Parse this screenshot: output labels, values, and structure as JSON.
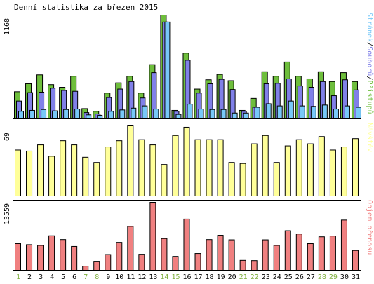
{
  "title": "Denní statistika za březen 2015",
  "days": [
    "1",
    "2",
    "3",
    "4",
    "5",
    "6",
    "7",
    "8",
    "9",
    "10",
    "11",
    "12",
    "13",
    "14",
    "15",
    "16",
    "17",
    "18",
    "19",
    "20",
    "21",
    "22",
    "23",
    "24",
    "25",
    "26",
    "27",
    "28",
    "29",
    "30",
    "31"
  ],
  "weekend_days": [
    "1",
    "7",
    "8",
    "14",
    "15",
    "21",
    "22",
    "28",
    "29"
  ],
  "colors": {
    "pristupu": "#6ebe3c",
    "souboru": "#8080e8",
    "stranek": "#78c8f8",
    "navstev": "#ffff99",
    "objem": "#f08080",
    "weekday_label": "#000000",
    "weekend_label": "#80b040",
    "frame": "#000000"
  },
  "chart_data": [
    {
      "type": "bar",
      "panel": "top",
      "ymax_label": "1168",
      "ylim": [
        0,
        1168
      ],
      "legend": [
        {
          "text": "Stránek",
          "key": "stranek"
        },
        {
          "text": "/",
          "key": "slash"
        },
        {
          "text": "Souborů",
          "key": "souboru"
        },
        {
          "text": "/",
          "key": "slash"
        },
        {
          "text": "Přístupů",
          "key": "pristupu"
        }
      ],
      "categories": [
        "1",
        "2",
        "3",
        "4",
        "5",
        "6",
        "7",
        "8",
        "9",
        "10",
        "11",
        "12",
        "13",
        "14",
        "15",
        "16",
        "17",
        "18",
        "19",
        "20",
        "21",
        "22",
        "23",
        "24",
        "25",
        "26",
        "27",
        "28",
        "29",
        "30",
        "31"
      ],
      "series": [
        {
          "name": "Přístupů",
          "key": "pristupu",
          "values": [
            305,
            395,
            495,
            385,
            355,
            480,
            115,
            85,
            290,
            405,
            480,
            290,
            610,
            1168,
            95,
            740,
            335,
            440,
            500,
            430,
            95,
            230,
            530,
            480,
            640,
            480,
            450,
            530,
            420,
            520,
            420
          ]
        },
        {
          "name": "Souborů",
          "key": "souboru",
          "values": [
            200,
            295,
            300,
            345,
            320,
            310,
            70,
            55,
            240,
            335,
            420,
            235,
            520,
            1090,
            85,
            660,
            290,
            395,
            445,
            330,
            85,
            130,
            395,
            400,
            450,
            370,
            355,
            420,
            260,
            440,
            325
          ]
        },
        {
          "name": "Stránek",
          "key": "stranek",
          "values": [
            85,
            95,
            105,
            90,
            105,
            110,
            45,
            40,
            85,
            100,
            120,
            145,
            110,
            1090,
            50,
            165,
            110,
            105,
            105,
            65,
            65,
            130,
            170,
            145,
            200,
            145,
            140,
            155,
            110,
            145,
            130
          ]
        }
      ]
    },
    {
      "type": "bar",
      "panel": "middle",
      "ymax_label": "69",
      "ylim": [
        0,
        69
      ],
      "legend": [
        {
          "text": "Návštěv",
          "key": "navstev"
        }
      ],
      "categories": [
        "1",
        "2",
        "3",
        "4",
        "5",
        "6",
        "7",
        "8",
        "9",
        "10",
        "11",
        "12",
        "13",
        "14",
        "15",
        "16",
        "17",
        "18",
        "19",
        "20",
        "21",
        "22",
        "23",
        "24",
        "25",
        "26",
        "27",
        "28",
        "29",
        "30",
        "31"
      ],
      "series": [
        {
          "name": "Návštěv",
          "key": "navstev",
          "values": [
            45,
            44,
            50,
            39,
            54,
            50,
            38,
            33,
            48,
            54,
            69,
            55,
            50,
            31,
            59,
            67,
            55,
            55,
            55,
            33,
            32,
            51,
            59,
            33,
            49,
            55,
            51,
            58,
            45,
            48,
            56
          ]
        }
      ]
    },
    {
      "type": "bar",
      "panel": "bottom",
      "ymax_label": "13559",
      "ylim": [
        0,
        13559
      ],
      "legend": [
        {
          "text": "Objem přenosu",
          "key": "objem"
        }
      ],
      "categories": [
        "1",
        "2",
        "3",
        "4",
        "5",
        "6",
        "7",
        "8",
        "9",
        "10",
        "11",
        "12",
        "13",
        "14",
        "15",
        "16",
        "17",
        "18",
        "19",
        "20",
        "21",
        "22",
        "23",
        "24",
        "25",
        "26",
        "27",
        "28",
        "29",
        "30",
        "31"
      ],
      "series": [
        {
          "name": "Objem přenosu",
          "key": "objem",
          "values": [
            5400,
            5200,
            5050,
            6950,
            6200,
            4850,
            960,
            1920,
            3250,
            5650,
            8800,
            3300,
            13559,
            6400,
            2880,
            10250,
            3450,
            6200,
            7050,
            6150,
            2100,
            2050,
            6150,
            5050,
            7950,
            7300,
            5400,
            6750,
            6900,
            10050,
            4050
          ]
        }
      ]
    }
  ]
}
